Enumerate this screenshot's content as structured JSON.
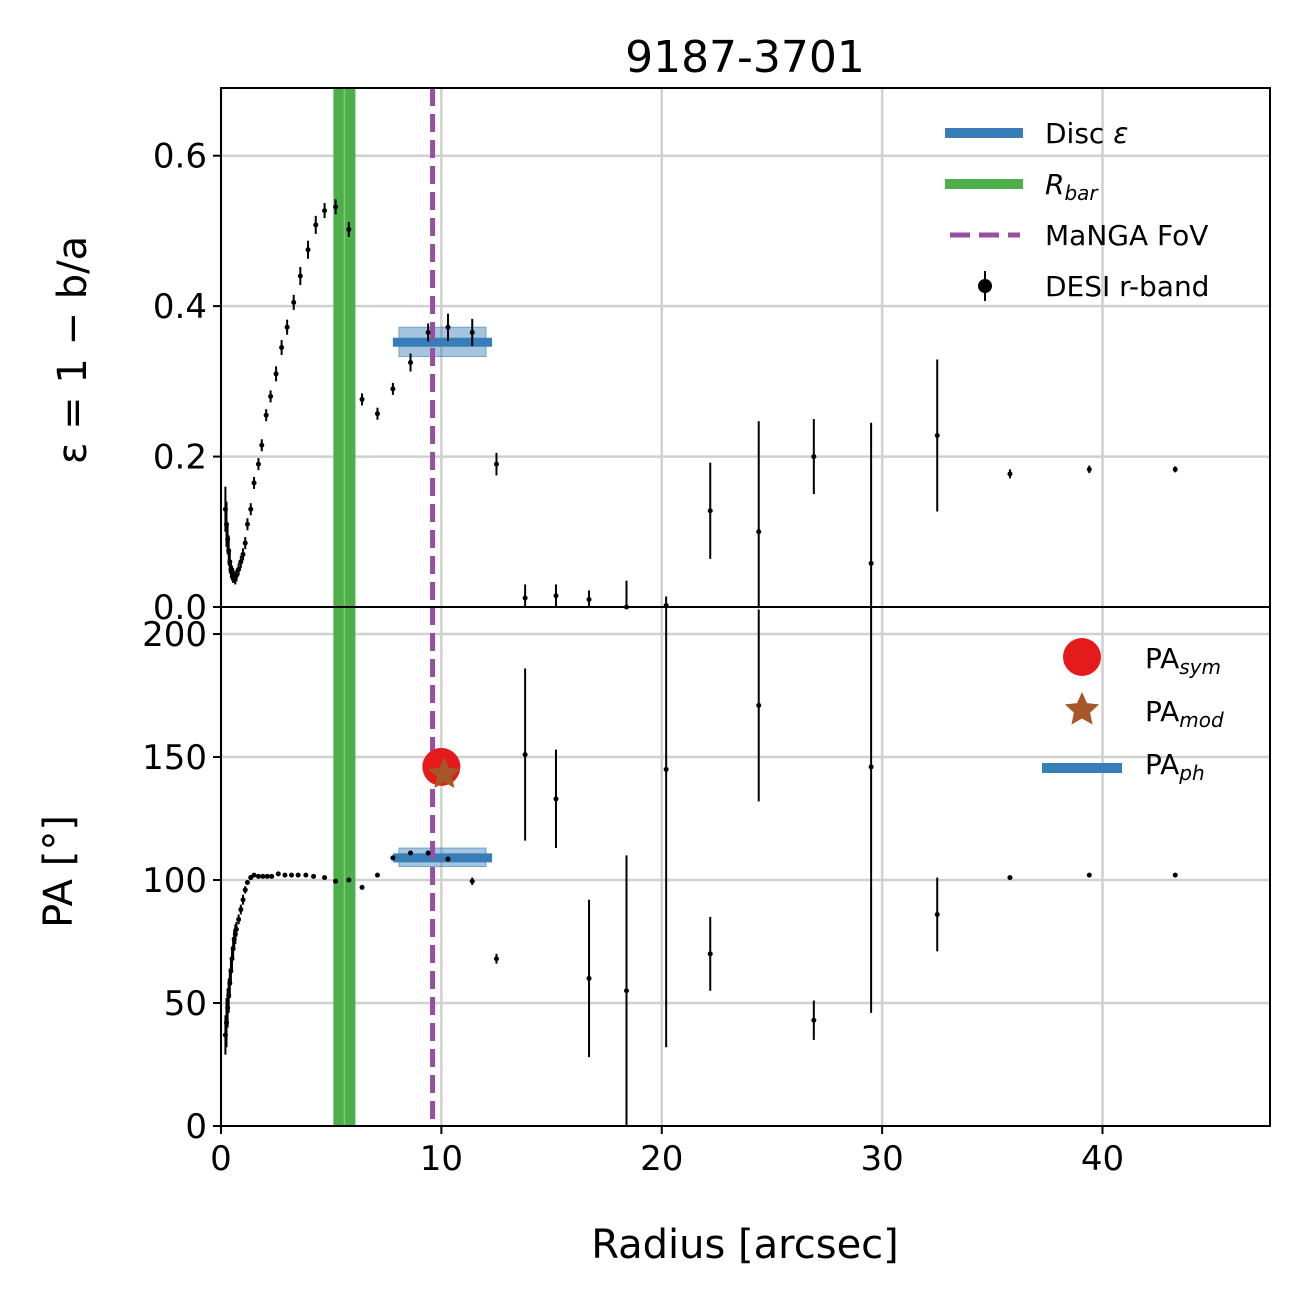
{
  "chart_data": {
    "type": "scatter",
    "title": "9187-3701",
    "xlabel": "Radius [arcsec]",
    "xlim": [
      0,
      47.6
    ],
    "xticks": [
      0,
      10,
      20,
      30,
      40
    ],
    "grid": true,
    "colors": {
      "disc": "#377eb8",
      "bar": "#4daf4a",
      "fov": "#984ea3",
      "sym": "#e41a1c",
      "mod": "#a65628",
      "points": "#000000"
    },
    "bar_radius": [
      5.1,
      6.1
    ],
    "fov_radius": 9.6,
    "panels": [
      {
        "id": "ellipticity",
        "ylabel": "ε = 1 − b/a",
        "ylim": [
          0,
          0.69
        ],
        "yticks": [
          0.0,
          0.2,
          0.4,
          0.6
        ],
        "ytick_labels": [
          "0.0",
          "0.2",
          "0.4",
          "0.6"
        ],
        "legend_position": "upper right",
        "legend": [
          {
            "label": "Disc ε",
            "kind": "thick-line",
            "color": "#377eb8"
          },
          {
            "label": "R_bar",
            "kind": "thick-line",
            "color": "#4daf4a"
          },
          {
            "label": "MaNGA FoV",
            "kind": "dashed-line",
            "color": "#984ea3"
          },
          {
            "label": "DESI r-band",
            "kind": "errorbar-point",
            "color": "#000000"
          }
        ],
        "disc_value": {
          "value": 0.352,
          "band": [
            0.333,
            0.372
          ],
          "x_range": [
            7.8,
            12.3
          ]
        },
        "points": [
          [
            0.2,
            0.13,
            0.03
          ],
          [
            0.25,
            0.11,
            0.03
          ],
          [
            0.3,
            0.09,
            0.02
          ],
          [
            0.35,
            0.075,
            0.02
          ],
          [
            0.4,
            0.06,
            0.015
          ],
          [
            0.45,
            0.05,
            0.012
          ],
          [
            0.5,
            0.045,
            0.01
          ],
          [
            0.55,
            0.042,
            0.01
          ],
          [
            0.6,
            0.04,
            0.008
          ],
          [
            0.65,
            0.038,
            0.008
          ],
          [
            0.7,
            0.042,
            0.008
          ],
          [
            0.8,
            0.05,
            0.008
          ],
          [
            0.9,
            0.06,
            0.008
          ],
          [
            1.0,
            0.07,
            0.008
          ],
          [
            1.1,
            0.085,
            0.008
          ],
          [
            1.2,
            0.11,
            0.008
          ],
          [
            1.35,
            0.13,
            0.008
          ],
          [
            1.5,
            0.165,
            0.008
          ],
          [
            1.7,
            0.19,
            0.008
          ],
          [
            1.85,
            0.215,
            0.008
          ],
          [
            2.05,
            0.255,
            0.008
          ],
          [
            2.25,
            0.28,
            0.008
          ],
          [
            2.5,
            0.31,
            0.01
          ],
          [
            2.75,
            0.345,
            0.01
          ],
          [
            3.0,
            0.372,
            0.01
          ],
          [
            3.3,
            0.405,
            0.01
          ],
          [
            3.6,
            0.44,
            0.012
          ],
          [
            3.95,
            0.475,
            0.012
          ],
          [
            4.3,
            0.508,
            0.012
          ],
          [
            4.7,
            0.527,
            0.01
          ],
          [
            5.2,
            0.532,
            0.01
          ],
          [
            5.8,
            0.502,
            0.01
          ],
          [
            6.4,
            0.276,
            0.008
          ],
          [
            7.1,
            0.257,
            0.008
          ],
          [
            7.8,
            0.29,
            0.008
          ],
          [
            8.6,
            0.325,
            0.012
          ],
          [
            9.4,
            0.365,
            0.012
          ],
          [
            10.3,
            0.372,
            0.018
          ],
          [
            11.4,
            0.365,
            0.018
          ],
          [
            12.5,
            0.19,
            0.015
          ],
          [
            13.8,
            0.012,
            0.018
          ],
          [
            15.2,
            0.015,
            0.015
          ],
          [
            16.7,
            0.01,
            0.012
          ],
          [
            18.4,
            0.0,
            0.035
          ],
          [
            20.2,
            0.002,
            0.012
          ],
          [
            22.2,
            0.128,
            0.064
          ],
          [
            24.4,
            0.1,
            0.147
          ],
          [
            26.9,
            0.2,
            0.05
          ],
          [
            29.5,
            0.058,
            0.187
          ],
          [
            32.5,
            0.228,
            0.101
          ],
          [
            35.8,
            0.177,
            0.006
          ],
          [
            39.4,
            0.183,
            0.005
          ],
          [
            43.3,
            0.183,
            0.004
          ]
        ]
      },
      {
        "id": "position-angle",
        "ylabel": "PA [°]",
        "ylim": [
          0,
          211
        ],
        "yticks": [
          0,
          50,
          100,
          150,
          200
        ],
        "ytick_labels": [
          "0",
          "50",
          "100",
          "150",
          "200"
        ],
        "legend_position": "upper right",
        "legend": [
          {
            "label": "PA",
            "sub": "sym",
            "kind": "circle",
            "color": "#e41a1c"
          },
          {
            "label": "PA",
            "sub": "mod",
            "kind": "star",
            "color": "#a65628"
          },
          {
            "label": "PA",
            "sub": "ph",
            "kind": "thick-line",
            "color": "#377eb8"
          }
        ],
        "pa_sym": {
          "x": 10.0,
          "y": 146
        },
        "pa_mod": {
          "x": 10.0,
          "y": 143
        },
        "pa_ph": {
          "value": 109,
          "band": [
            105.5,
            113
          ],
          "x_range": [
            7.8,
            12.3
          ]
        },
        "points": [
          [
            0.2,
            37,
            8
          ],
          [
            0.25,
            42,
            10
          ],
          [
            0.3,
            48,
            8
          ],
          [
            0.35,
            53,
            7
          ],
          [
            0.4,
            58,
            6
          ],
          [
            0.45,
            63,
            5
          ],
          [
            0.5,
            68,
            5
          ],
          [
            0.55,
            72,
            4
          ],
          [
            0.6,
            76,
            4
          ],
          [
            0.65,
            78,
            4
          ],
          [
            0.7,
            80,
            3
          ],
          [
            0.8,
            84,
            2
          ],
          [
            0.9,
            88,
            2
          ],
          [
            1.0,
            92,
            2
          ],
          [
            1.1,
            96,
            1.5
          ],
          [
            1.2,
            99,
            1
          ],
          [
            1.35,
            101,
            1
          ],
          [
            1.5,
            102,
            0.5
          ],
          [
            1.7,
            101.5,
            0.5
          ],
          [
            1.9,
            101.5,
            0.5
          ],
          [
            2.1,
            101.5,
            0.5
          ],
          [
            2.3,
            101.5,
            0.5
          ],
          [
            2.6,
            102.5,
            0.5
          ],
          [
            2.9,
            102,
            0.5
          ],
          [
            3.2,
            102,
            0.5
          ],
          [
            3.5,
            102,
            0.5
          ],
          [
            3.85,
            102,
            0.5
          ],
          [
            4.2,
            101.5,
            0.5
          ],
          [
            4.7,
            101,
            0.5
          ],
          [
            5.2,
            99.5,
            0.5
          ],
          [
            5.8,
            100,
            0.5
          ],
          [
            6.4,
            97,
            0.5
          ],
          [
            7.1,
            102,
            0.5
          ],
          [
            7.8,
            109,
            0.8
          ],
          [
            8.6,
            111,
            0.8
          ],
          [
            9.4,
            111,
            1.0
          ],
          [
            10.3,
            108.5,
            1.0
          ],
          [
            11.4,
            99.5,
            1.5
          ],
          [
            12.5,
            68,
            2
          ],
          [
            13.8,
            151,
            35
          ],
          [
            15.2,
            133,
            20
          ],
          [
            16.7,
            60,
            32
          ],
          [
            18.4,
            55,
            55
          ],
          [
            20.2,
            145,
            113
          ],
          [
            22.2,
            70,
            15
          ],
          [
            24.4,
            171,
            39
          ],
          [
            26.9,
            43,
            8
          ],
          [
            29.5,
            146,
            100
          ],
          [
            32.5,
            86,
            15
          ],
          [
            35.8,
            101,
            0.5
          ],
          [
            39.4,
            102,
            0.5
          ],
          [
            43.3,
            102,
            0.5
          ]
        ]
      }
    ]
  }
}
